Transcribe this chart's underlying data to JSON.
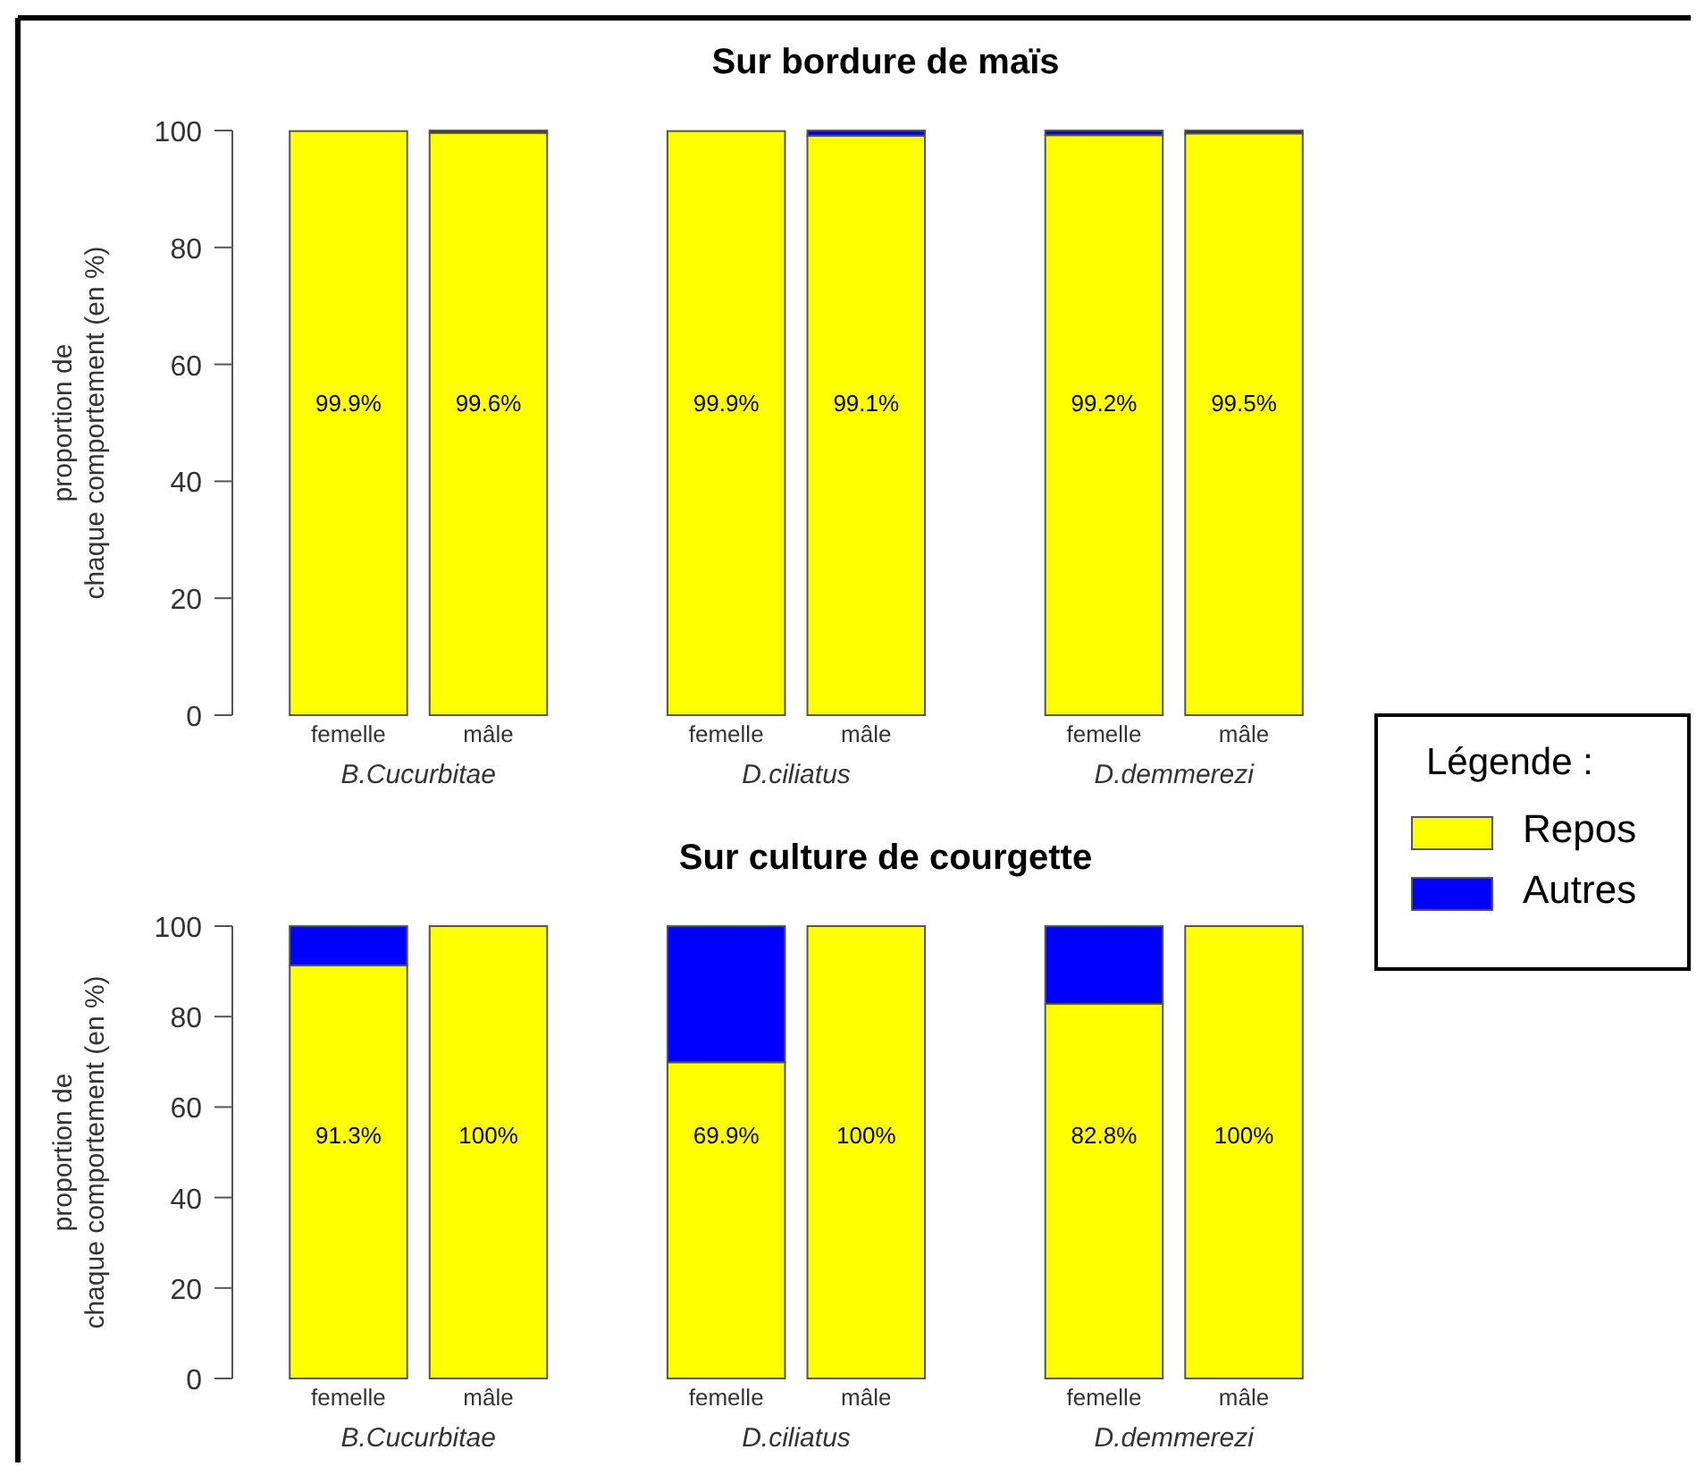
{
  "chart_data": [
    {
      "type": "bar",
      "title": "Sur bordure de maïs",
      "ylabel": "proportion de\nchaque comportement (en %)",
      "categories": [
        "femelle",
        "mâle",
        "femelle",
        "mâle",
        "femelle",
        "mâle"
      ],
      "stacked": true,
      "series": [
        {
          "name": "Repos",
          "color": "#ffff00",
          "values": [
            99.9,
            99.6,
            99.9,
            99.1,
            99.2,
            99.5
          ],
          "value_labels": [
            "99.9%",
            "99.6%",
            "99.9%",
            "99.1%",
            "99.2%",
            "99.5%"
          ]
        },
        {
          "name": "Autres",
          "color": "#0000ff",
          "values": [
            null,
            0.4,
            null,
            0.9,
            0.8,
            0.5
          ]
        }
      ],
      "ylim": [
        0,
        100
      ],
      "yticks": [
        0,
        20,
        40,
        60,
        80,
        100
      ],
      "legend": "right",
      "legend_title": "Légende :",
      "annotations": [
        "B.Cucurbitae",
        "D.ciliatus",
        "D.demmerezi"
      ]
    },
    {
      "type": "bar",
      "title": "Sur culture de courgette",
      "ylabel": "proportion de\nchaque comportement (en %)",
      "categories": [
        "femelle",
        "mâle",
        "femelle",
        "mâle",
        "femelle",
        "mâle"
      ],
      "stacked": true,
      "series": [
        {
          "color": "#ffff00",
          "values": [
            91.3,
            100,
            69.9,
            100,
            82.8,
            100
          ],
          "value_labels": [
            "91.3%",
            "100%",
            "69.9%",
            "100%",
            "82.8%",
            "100%"
          ]
        },
        {
          "color": "#0000ff",
          "values": [
            8.7,
            0,
            30.1,
            0,
            17.2,
            0
          ]
        }
      ],
      "ylim": [
        0,
        100
      ],
      "yticks": [
        0,
        20,
        40,
        60,
        80,
        100
      ],
      "annotations": [
        "B.Cucurbitae",
        "D.ciliatus",
        "D.demmerezi"
      ]
    }
  ]
}
